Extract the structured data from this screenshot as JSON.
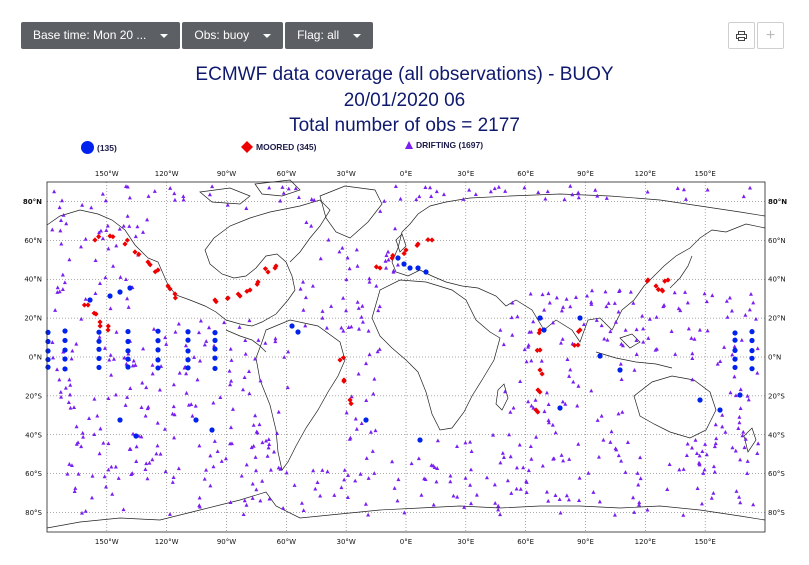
{
  "toolbar": {
    "base_time": "Base time: Mon 20 ...",
    "obs": "Obs: buoy",
    "flag": "Flag: all"
  },
  "icons": {
    "print": "print-icon",
    "plus": "plus-icon"
  },
  "title": {
    "line1": "ECMWF data coverage (all observations) - BUOY",
    "line2": "20/01/2020 06",
    "line3": "Total number of obs = 2177"
  },
  "legend": [
    {
      "label": "(135)",
      "color": "#0022ee",
      "shape": "circle"
    },
    {
      "label": "MOORED (345)",
      "color": "#ee0000",
      "shape": "diamond"
    },
    {
      "label": "DRIFTING (1697)",
      "color": "#7a1ff0",
      "shape": "triangle"
    }
  ],
  "map": {
    "lon_labels": [
      "150°W",
      "120°W",
      "90°W",
      "60°W",
      "30°W",
      "0°E",
      "30°E",
      "60°E",
      "90°E",
      "120°E",
      "150°E"
    ],
    "lat_labels": [
      "80°N",
      "60°N",
      "40°N",
      "20°N",
      "0°N",
      "20°S",
      "40°S",
      "60°S",
      "80°S"
    ],
    "lon_values": [
      -150,
      -120,
      -90,
      -60,
      -30,
      0,
      30,
      60,
      90,
      120,
      150
    ],
    "lat_values": [
      80,
      60,
      40,
      20,
      0,
      -20,
      -40,
      -60,
      -80
    ],
    "lon_range": [
      -180,
      180
    ],
    "lat_range": [
      -90,
      90
    ],
    "grid": "dotted"
  }
}
